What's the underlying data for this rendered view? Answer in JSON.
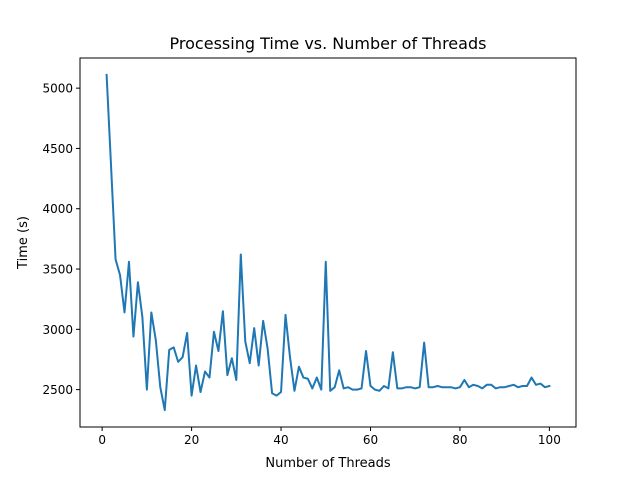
{
  "chart_data": {
    "type": "line",
    "title": "Processing Time vs. Number of Threads",
    "xlabel": "Number of Threads",
    "ylabel": "Time (s)",
    "xlim": [
      -4.95,
      105.95
    ],
    "ylim": [
      2190,
      5250
    ],
    "xticks": [
      0,
      20,
      40,
      60,
      80,
      100
    ],
    "yticks": [
      2500,
      3000,
      3500,
      4000,
      4500,
      5000
    ],
    "grid": false,
    "line_color": "#1f77b4",
    "series": [
      {
        "x": [
          1,
          2,
          3,
          4,
          5,
          6,
          7,
          8,
          9,
          10,
          11,
          12,
          13,
          14,
          15,
          16,
          17,
          18,
          19,
          20,
          21,
          22,
          23,
          24,
          25,
          26,
          27,
          28,
          29,
          30,
          31,
          32,
          33,
          34,
          35,
          36,
          37,
          38,
          39,
          40,
          41,
          42,
          43,
          44,
          45,
          46,
          47,
          48,
          49,
          50,
          51,
          52,
          53,
          54,
          55,
          56,
          57,
          58,
          59,
          60,
          61,
          62,
          63,
          64,
          65,
          66,
          67,
          68,
          69,
          70,
          71,
          72,
          73,
          74,
          75,
          76,
          77,
          78,
          79,
          80,
          81,
          82,
          83,
          84,
          85,
          86,
          87,
          88,
          89,
          90,
          91,
          92,
          93,
          94,
          95,
          96,
          97,
          98,
          99,
          100
        ],
        "values": [
          5110,
          4350,
          3580,
          3450,
          3140,
          3560,
          2940,
          3390,
          3100,
          2500,
          3140,
          2910,
          2520,
          2330,
          2830,
          2850,
          2730,
          2770,
          2970,
          2450,
          2700,
          2480,
          2650,
          2600,
          2980,
          2820,
          3150,
          2620,
          2760,
          2580,
          3620,
          2900,
          2720,
          3010,
          2700,
          3070,
          2840,
          2470,
          2450,
          2480,
          3120,
          2770,
          2490,
          2690,
          2600,
          2590,
          2510,
          2600,
          2500,
          3560,
          2490,
          2520,
          2660,
          2510,
          2520,
          2500,
          2500,
          2510,
          2820,
          2530,
          2500,
          2490,
          2530,
          2510,
          2810,
          2510,
          2510,
          2520,
          2520,
          2510,
          2520,
          2890,
          2520,
          2520,
          2530,
          2520,
          2520,
          2520,
          2510,
          2520,
          2580,
          2520,
          2540,
          2530,
          2510,
          2540,
          2540,
          2510,
          2520,
          2520,
          2530,
          2540,
          2520,
          2530,
          2530,
          2600,
          2540,
          2550,
          2520,
          2530
        ]
      }
    ]
  }
}
